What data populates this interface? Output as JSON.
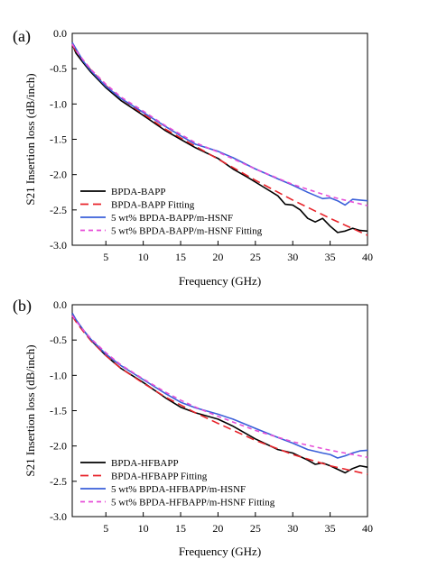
{
  "chart_data": [
    {
      "type": "line",
      "panel_label": "(a)",
      "xlabel": "Frequency (GHz)",
      "ylabel": "S21 Insertion loss (dB/inch)",
      "xlim": [
        0.5,
        40
      ],
      "ylim": [
        -3.0,
        0.0
      ],
      "xticks": [
        5,
        10,
        15,
        20,
        25,
        30,
        35,
        40
      ],
      "yticks": [
        0.0,
        -0.5,
        -1.0,
        -1.5,
        -2.0,
        -2.5,
        -3.0
      ],
      "xtick_labels": [
        "5",
        "10",
        "15",
        "20",
        "25",
        "30",
        "35",
        "40"
      ],
      "ytick_labels": [
        "0.0",
        "-0.5",
        "-1.0",
        "-1.5",
        "-2.0",
        "-2.5",
        "-3.0"
      ],
      "grid": false,
      "legend_position": "bottom-left",
      "series": [
        {
          "name": "BPDA-BAPP",
          "color": "#000000",
          "dash": "solid",
          "x": [
            0.5,
            1,
            2,
            3,
            5,
            7,
            10,
            13,
            15,
            17,
            20,
            22,
            24,
            26,
            28,
            29,
            30,
            31,
            32,
            33,
            34,
            35,
            36,
            37,
            38,
            39,
            40
          ],
          "y": [
            -0.15,
            -0.28,
            -0.42,
            -0.55,
            -0.77,
            -0.95,
            -1.16,
            -1.38,
            -1.5,
            -1.62,
            -1.77,
            -1.92,
            -2.04,
            -2.17,
            -2.3,
            -2.42,
            -2.43,
            -2.5,
            -2.62,
            -2.67,
            -2.62,
            -2.73,
            -2.82,
            -2.8,
            -2.76,
            -2.79,
            -2.8
          ]
        },
        {
          "name": "BPDA-BAPP Fitting",
          "color": "#e8232a",
          "dash": "long",
          "x": [
            0.5,
            1,
            2,
            3,
            5,
            7,
            10,
            13,
            15,
            17,
            20,
            25,
            30,
            35,
            40
          ],
          "y": [
            -0.16,
            -0.25,
            -0.39,
            -0.52,
            -0.74,
            -0.92,
            -1.14,
            -1.36,
            -1.48,
            -1.6,
            -1.78,
            -2.08,
            -2.36,
            -2.62,
            -2.86
          ]
        },
        {
          "name": "5 wt% BPDA-BAPP/m-HSNF",
          "color": "#3a5fd9",
          "dash": "solid",
          "x": [
            0.5,
            1,
            2,
            3,
            5,
            7,
            10,
            13,
            15,
            17,
            20,
            22,
            25,
            28,
            30,
            32,
            34,
            35,
            36,
            37,
            38,
            39,
            40
          ],
          "y": [
            -0.13,
            -0.22,
            -0.4,
            -0.53,
            -0.75,
            -0.92,
            -1.12,
            -1.32,
            -1.45,
            -1.57,
            -1.67,
            -1.76,
            -1.92,
            -2.06,
            -2.15,
            -2.25,
            -2.34,
            -2.33,
            -2.37,
            -2.43,
            -2.35,
            -2.36,
            -2.37
          ]
        },
        {
          "name": "5 wt% BPDA-BAPP/m-HSNF Fitting",
          "color": "#e64fd8",
          "dash": "short",
          "x": [
            0.5,
            1,
            2,
            3,
            5,
            7,
            10,
            13,
            15,
            17,
            20,
            25,
            30,
            35,
            40
          ],
          "y": [
            -0.15,
            -0.24,
            -0.38,
            -0.51,
            -0.72,
            -0.9,
            -1.1,
            -1.31,
            -1.43,
            -1.55,
            -1.68,
            -1.92,
            -2.14,
            -2.31,
            -2.44
          ]
        }
      ]
    },
    {
      "type": "line",
      "panel_label": "(b)",
      "xlabel": "Frequency (GHz)",
      "ylabel": "S21 Insertion loss (dB/inch)",
      "xlim": [
        0.5,
        40
      ],
      "ylim": [
        -3.0,
        0.0
      ],
      "xticks": [
        5,
        10,
        15,
        20,
        25,
        30,
        35,
        40
      ],
      "yticks": [
        0.0,
        -0.5,
        -1.0,
        -1.5,
        -2.0,
        -2.5,
        -3.0
      ],
      "xtick_labels": [
        "5",
        "10",
        "15",
        "20",
        "25",
        "30",
        "35",
        "40"
      ],
      "ytick_labels": [
        "0.0",
        "-0.5",
        "-1.0",
        "-1.5",
        "-2.0",
        "-2.5",
        "-3.0"
      ],
      "grid": false,
      "legend_position": "bottom-left",
      "series": [
        {
          "name": "BPDA-HFBAPP",
          "color": "#000000",
          "dash": "solid",
          "x": [
            0.5,
            1,
            2,
            3,
            5,
            7,
            10,
            13,
            15,
            17,
            20,
            22,
            25,
            28,
            30,
            32,
            33,
            34,
            35,
            36,
            37,
            38,
            39,
            40
          ],
          "y": [
            -0.12,
            -0.22,
            -0.36,
            -0.5,
            -0.72,
            -0.9,
            -1.1,
            -1.32,
            -1.45,
            -1.53,
            -1.62,
            -1.72,
            -1.9,
            -2.05,
            -2.1,
            -2.2,
            -2.26,
            -2.24,
            -2.28,
            -2.33,
            -2.38,
            -2.32,
            -2.28,
            -2.3
          ]
        },
        {
          "name": "BPDA-HFBAPP Fitting",
          "color": "#e8232a",
          "dash": "long",
          "x": [
            0.5,
            1,
            2,
            3,
            5,
            7,
            10,
            13,
            15,
            17,
            20,
            25,
            30,
            35,
            40
          ],
          "y": [
            -0.16,
            -0.24,
            -0.38,
            -0.51,
            -0.72,
            -0.9,
            -1.11,
            -1.31,
            -1.42,
            -1.53,
            -1.68,
            -1.92,
            -2.12,
            -2.28,
            -2.4
          ]
        },
        {
          "name": "5 wt% BPDA-HFBAPP/m-HSNF",
          "color": "#3a5fd9",
          "dash": "solid",
          "x": [
            0.5,
            1,
            2,
            3,
            5,
            7,
            10,
            13,
            15,
            17,
            20,
            22,
            25,
            28,
            30,
            32,
            34,
            35,
            36,
            37,
            38,
            39,
            40
          ],
          "y": [
            -0.12,
            -0.21,
            -0.36,
            -0.49,
            -0.7,
            -0.86,
            -1.06,
            -1.26,
            -1.38,
            -1.46,
            -1.55,
            -1.62,
            -1.75,
            -1.88,
            -1.96,
            -2.05,
            -2.1,
            -2.12,
            -2.17,
            -2.14,
            -2.1,
            -2.07,
            -2.06
          ]
        },
        {
          "name": "5 wt% BPDA-HFBAPP/m-HSNF Fitting",
          "color": "#e64fd8",
          "dash": "short",
          "x": [
            0.5,
            1,
            2,
            3,
            5,
            7,
            10,
            13,
            15,
            17,
            20,
            25,
            30,
            35,
            40
          ],
          "y": [
            -0.15,
            -0.23,
            -0.36,
            -0.48,
            -0.68,
            -0.85,
            -1.05,
            -1.24,
            -1.35,
            -1.45,
            -1.58,
            -1.78,
            -1.94,
            -2.06,
            -2.16
          ]
        }
      ]
    }
  ]
}
